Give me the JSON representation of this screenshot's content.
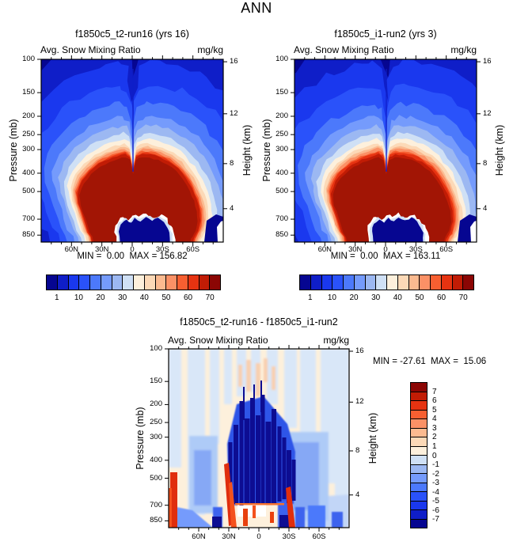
{
  "suptitle": "ANN",
  "panels": {
    "left": {
      "title": "f1850c5_t2-run16 (yrs 16)",
      "subtitle": "Avg. Snow Mixing Ratio",
      "units": "mg/kg",
      "min_max": "MIN =  0.00  MAX = 156.82"
    },
    "right": {
      "title": "f1850c5_i1-run2 (yrs 3)",
      "subtitle": "Avg. Snow Mixing Ratio",
      "units": "mg/kg",
      "min_max": "MIN =  0.00  MAX = 163.11"
    },
    "diff": {
      "title": "f1850c5_t2-run16 - f1850c5_i1-run2",
      "subtitle": "Avg. Snow Mixing Ratio",
      "units": "mg/kg",
      "min_max": "MIN = -27.61  MAX =  15.06"
    }
  },
  "axes": {
    "pressure_label": "Pressure (mb)",
    "height_label": "Height (km)",
    "pressure_ticks": [
      100,
      150,
      200,
      250,
      300,
      400,
      500,
      700,
      850
    ],
    "lat_ticks": [
      "60N",
      "30N",
      "0",
      "30S",
      "60S"
    ],
    "height_ticks": [
      16,
      12,
      8,
      4
    ]
  },
  "colorbar_top": {
    "labels": [
      1,
      10,
      20,
      30,
      40,
      50,
      60,
      70
    ]
  },
  "colorbar_diff": {
    "labels": [
      7,
      6,
      5,
      4,
      3,
      2,
      1,
      0,
      -1,
      -2,
      -3,
      -4,
      -5,
      -6,
      -7
    ]
  },
  "palette_16": [
    "#060691",
    "#0F1EC8",
    "#1A38EE",
    "#2A52FA",
    "#4C79FB",
    "#759BFC",
    "#9CB8F2",
    "#CFE0F5",
    "#FDF0DC",
    "#FCD9B7",
    "#FBBA90",
    "#FB9166",
    "#F75F31",
    "#E63311",
    "#C11C05",
    "#8B0604"
  ],
  "chart_data": {
    "type": "filled_contour_panel_set",
    "season": "ANN",
    "variable": "Avg. Snow Mixing Ratio",
    "units": "mg/kg",
    "x_axis": {
      "label": "latitude",
      "ticks": [
        "60N",
        "30N",
        "0",
        "30S",
        "60S"
      ],
      "range": [
        "90N",
        "90S"
      ],
      "minor_tick_interval_deg": 10
    },
    "y_axis_left": {
      "label": "Pressure (mb)",
      "scale": "log",
      "ticks": [
        100,
        150,
        200,
        250,
        300,
        400,
        500,
        700,
        850
      ],
      "range": [
        100,
        925
      ]
    },
    "y_axis_right": {
      "label": "Height (km)",
      "ticks": [
        16,
        12,
        8,
        4
      ]
    },
    "panels": [
      {
        "name": "f1850c5_t2-run16 (yrs 16)",
        "min": 0.0,
        "max": 156.82,
        "contour_levels": [
          1,
          5,
          10,
          15,
          20,
          25,
          30,
          35,
          40,
          45,
          50,
          55,
          60,
          65,
          70
        ],
        "colorbar_labels": [
          1,
          10,
          20,
          30,
          40,
          50,
          60,
          70
        ],
        "pattern": "values >70 mg/kg in a broad dome centered near 450-600 mb from ~45N to ~45S; narrow notch of lower values at the equator; <1 mg/kg (dark blue) above ~150 mb, at high latitudes aloft, and in a near-surface tropical pocket below ~700 mb"
      },
      {
        "name": "f1850c5_i1-run2 (yrs 3)",
        "min": 0.0,
        "max": 163.11,
        "contour_levels": [
          1,
          5,
          10,
          15,
          20,
          25,
          30,
          35,
          40,
          45,
          50,
          55,
          60,
          65,
          70
        ],
        "colorbar_labels": [
          1,
          10,
          20,
          30,
          40,
          50,
          60,
          70
        ],
        "pattern": "nearly identical structure to run16: >70 mg/kg dome near 450-600 mb, equatorial notch, <1 mg/kg aloft and in near-surface tropical pocket"
      },
      {
        "name": "f1850c5_t2-run16 - f1850c5_i1-run2",
        "min": -27.61,
        "max": 15.06,
        "contour_levels": [
          -7,
          -6,
          -5,
          -4,
          -3,
          -2,
          -1,
          0,
          1,
          2,
          3,
          4,
          5,
          6,
          7
        ],
        "colorbar_labels": [
          7,
          6,
          5,
          4,
          3,
          2,
          1,
          0,
          -1,
          -2,
          -3,
          -4,
          -5,
          -6,
          -7
        ],
        "pattern": "strong negative differences (<-7 mg/kg, dark blue) in striated tropical columns between ~30N and ~30S from ~250 to ~700 mb; positive streaks (>+4) near 30N and 30S below 500 mb and at far northern high latitudes near the surface; weak +/-1 stripes elsewhere"
      }
    ]
  }
}
